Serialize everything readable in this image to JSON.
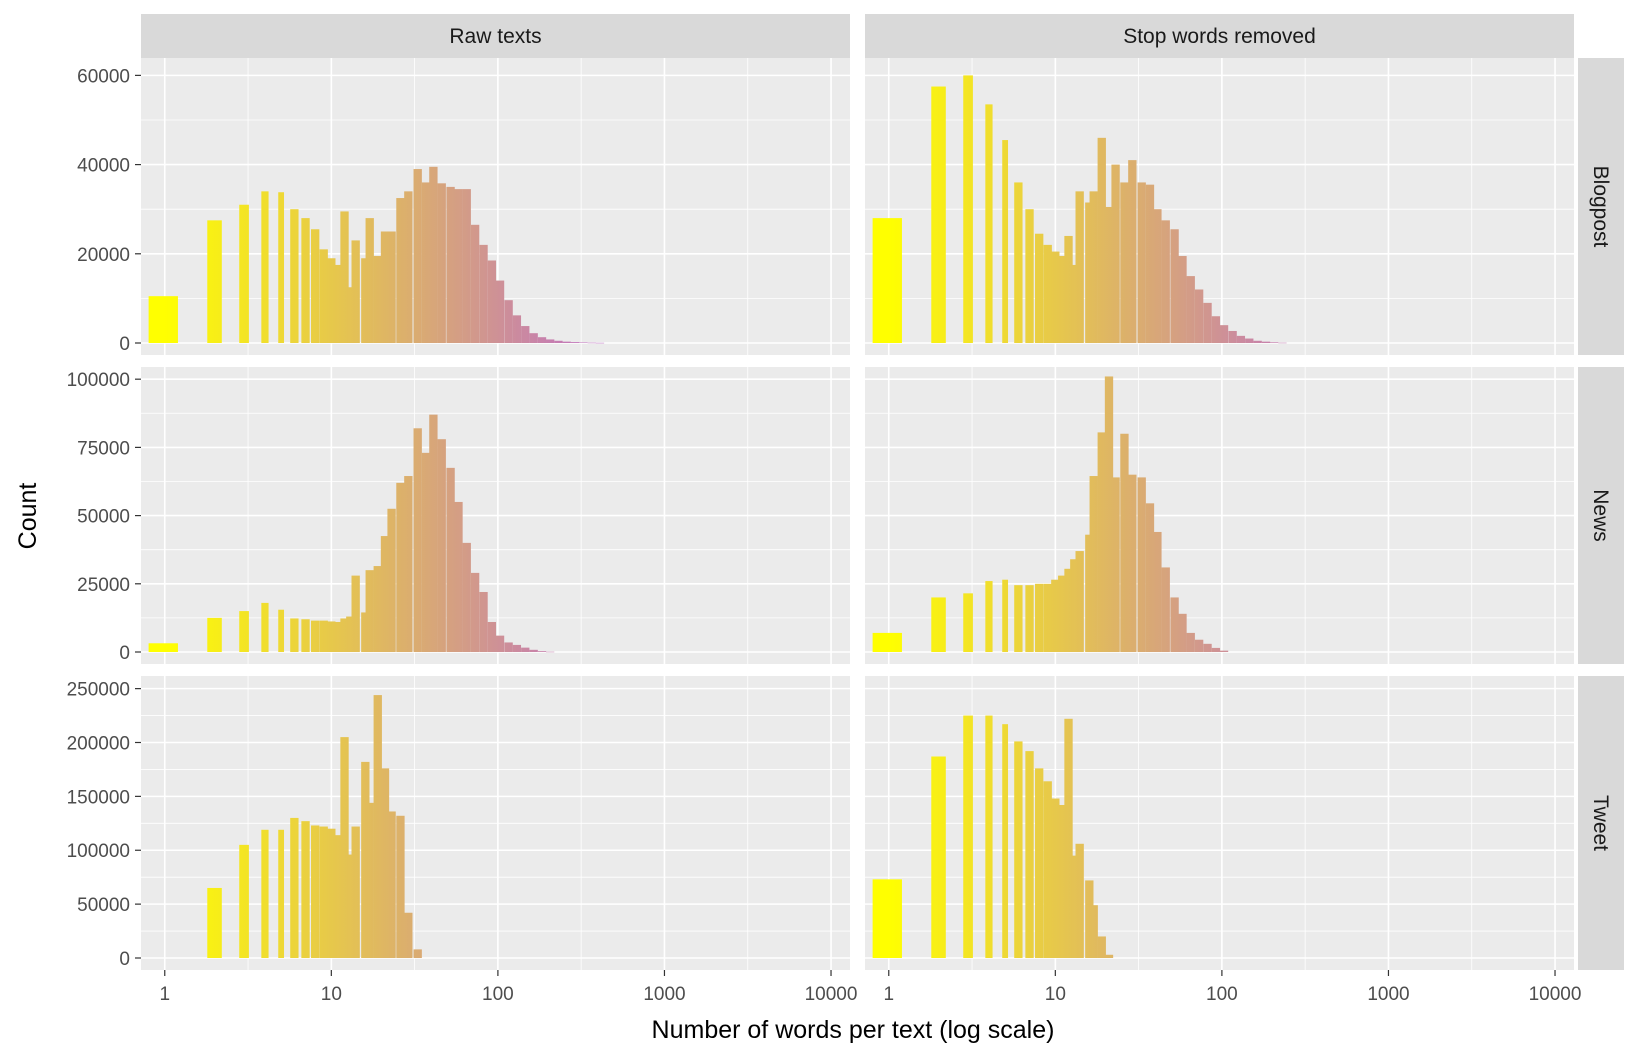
{
  "chart_data": {
    "type": "bar",
    "facet_columns": [
      "Raw texts",
      "Stop words removed"
    ],
    "facet_rows": [
      "Blogpost",
      "News",
      "Tweet"
    ],
    "xlabel": "Number of words per text (log scale)",
    "ylabel": "Count",
    "x_scale": "log10",
    "x_ticks": [
      1,
      10,
      100,
      1000,
      10000
    ],
    "x_tick_labels": [
      "1",
      "10",
      "100",
      "1000",
      "10000"
    ],
    "xlim": [
      0.72,
      13000
    ],
    "grid": true,
    "legend": "none",
    "fill_gradient": [
      "#ffff00",
      "#bf6fc4"
    ],
    "rows": [
      {
        "name": "Blogpost",
        "ylim": [
          0,
          63000
        ],
        "y_ticks": [
          0,
          20000,
          40000,
          60000
        ],
        "y_tick_labels": [
          "0",
          "20000",
          "40000",
          "60000"
        ]
      },
      {
        "name": "News",
        "ylim": [
          0,
          103000
        ],
        "y_ticks": [
          0,
          25000,
          50000,
          75000,
          100000
        ],
        "y_tick_labels": [
          "0",
          "25000",
          "50000",
          "75000",
          "100000"
        ]
      },
      {
        "name": "Tweet",
        "ylim": [
          0,
          258000
        ],
        "y_ticks": [
          0,
          50000,
          100000,
          150000,
          200000,
          250000
        ],
        "y_tick_labels": [
          "0",
          "50000",
          "100000",
          "150000",
          "200000",
          "250000"
        ]
      }
    ],
    "panels": [
      {
        "column": "Raw texts",
        "row": "Blogpost",
        "x": [
          1,
          2,
          3,
          4,
          5,
          6,
          7,
          8,
          9,
          10,
          11,
          12,
          13,
          14,
          16,
          17,
          19,
          21,
          23,
          26,
          29,
          33,
          37,
          41,
          46,
          52,
          58,
          65,
          73,
          82,
          92,
          103,
          116,
          130,
          146,
          164,
          184,
          206,
          231,
          259,
          291,
          326,
          366,
          410
        ],
        "counts": [
          10500,
          27500,
          31000,
          34000,
          33800,
          30000,
          28000,
          25500,
          21000,
          19000,
          17500,
          29500,
          12500,
          23000,
          19000,
          28000,
          19500,
          25000,
          25000,
          32500,
          34000,
          39000,
          36000,
          39500,
          35800,
          35000,
          34500,
          34500,
          26500,
          22000,
          18500,
          14000,
          9600,
          6200,
          3800,
          2200,
          1300,
          800,
          500,
          300,
          200,
          120,
          70,
          40
        ]
      },
      {
        "column": "Stop words removed",
        "row": "Blogpost",
        "x": [
          1,
          2,
          3,
          4,
          5,
          6,
          7,
          8,
          9,
          10,
          11,
          12,
          13,
          14,
          16,
          17,
          19,
          21,
          23,
          26,
          29,
          33,
          37,
          41,
          46,
          52,
          58,
          65,
          73,
          82,
          92,
          103,
          116,
          130,
          146,
          164,
          184,
          206,
          231
        ],
        "counts": [
          28000,
          57500,
          60000,
          53500,
          45500,
          36000,
          30000,
          24500,
          22000,
          20500,
          19500,
          24000,
          17500,
          34000,
          31500,
          34000,
          46000,
          30500,
          40000,
          36000,
          41000,
          36000,
          35500,
          30000,
          27500,
          25500,
          19500,
          15000,
          12000,
          9000,
          6000,
          4000,
          2700,
          1600,
          1000,
          500,
          300,
          150,
          60
        ]
      },
      {
        "column": "Raw texts",
        "row": "News",
        "x": [
          1,
          2,
          3,
          4,
          5,
          6,
          7,
          8,
          9,
          10,
          11,
          12,
          13,
          14,
          16,
          17,
          19,
          21,
          23,
          26,
          29,
          33,
          37,
          41,
          46,
          52,
          58,
          65,
          73,
          82,
          92,
          103,
          116,
          130,
          146,
          164,
          184,
          206
        ],
        "counts": [
          3200,
          12500,
          15000,
          18000,
          15500,
          12300,
          12000,
          11500,
          11500,
          11200,
          11000,
          12300,
          13000,
          28000,
          14500,
          30000,
          31500,
          42500,
          52500,
          62000,
          64500,
          82000,
          73000,
          87000,
          78000,
          67500,
          55000,
          40000,
          29000,
          22000,
          11000,
          6000,
          3500,
          2600,
          1600,
          800,
          300,
          100
        ]
      },
      {
        "column": "Stop words removed",
        "row": "News",
        "x": [
          1,
          2,
          3,
          4,
          5,
          6,
          7,
          8,
          9,
          10,
          11,
          12,
          13,
          14,
          16,
          17,
          19,
          21,
          23,
          26,
          29,
          33,
          37,
          41,
          46,
          52,
          58,
          65,
          73,
          82,
          92,
          103
        ],
        "counts": [
          7000,
          20000,
          21500,
          26000,
          26500,
          24500,
          24500,
          25000,
          25000,
          26500,
          28000,
          30500,
          34000,
          37000,
          43000,
          64500,
          80500,
          101000,
          64000,
          80000,
          65000,
          64000,
          54500,
          44000,
          31000,
          20000,
          14000,
          7000,
          4500,
          3000,
          1500,
          500
        ]
      },
      {
        "column": "Raw texts",
        "row": "Tweet",
        "x": [
          1,
          2,
          3,
          4,
          5,
          6,
          7,
          8,
          9,
          10,
          11,
          12,
          13,
          14,
          16,
          17,
          19,
          21,
          23,
          26,
          29,
          33
        ],
        "counts": [
          0,
          65000,
          105000,
          119000,
          119000,
          130000,
          127000,
          123000,
          122000,
          120000,
          114000,
          205000,
          96000,
          122000,
          182000,
          144000,
          244000,
          176000,
          136000,
          132000,
          42000,
          8000
        ]
      },
      {
        "column": "Stop words removed",
        "row": "Tweet",
        "x": [
          1,
          2,
          3,
          4,
          5,
          6,
          7,
          8,
          9,
          10,
          11,
          12,
          13,
          14,
          16,
          17,
          19,
          21
        ],
        "counts": [
          73000,
          187000,
          225000,
          225000,
          217000,
          201000,
          192000,
          176000,
          164000,
          148000,
          142000,
          222000,
          95000,
          106000,
          72000,
          49000,
          20000,
          3000
        ]
      }
    ]
  }
}
